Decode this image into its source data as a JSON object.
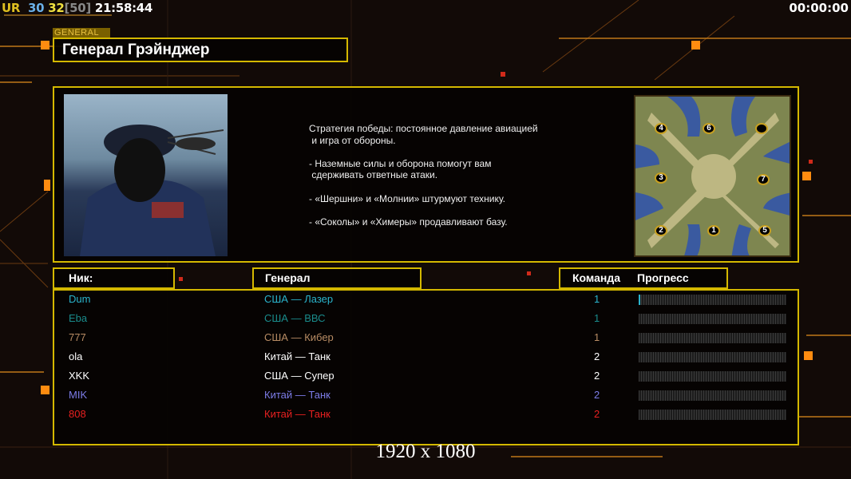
{
  "status": {
    "ur": "UR",
    "a": "30",
    "b": "32",
    "c": "[50]",
    "time": "21:58:44",
    "timer": "00:00:00"
  },
  "general": {
    "tag": "GENERAL",
    "name": "Генерал Грэйнджер",
    "briefing": "Стратегия победы: постоянное давление авиацией\n и игра от обороны.\n\n- Наземные силы и оборона помогут вам\n сдерживать ответные атаки.\n\n- «Шершни» и «Молнии» штурмуют технику.\n\n- «Соколы» и «Химеры» продавливают базу."
  },
  "map": {
    "start_positions": [
      "4",
      "6",
      "",
      "3",
      "7",
      "2",
      "1",
      "5"
    ]
  },
  "table": {
    "headers": {
      "nick": "Ник:",
      "general": "Генерал",
      "team": "Команда",
      "progress": "Прогресс"
    },
    "rows": [
      {
        "nick": "Dum",
        "general": "США — Лазер",
        "team": "1",
        "progress": 1,
        "color": "#2ab4cc"
      },
      {
        "nick": "Eba",
        "general": "США — ВВС",
        "team": "1",
        "progress": 0,
        "color": "#1a8c8c"
      },
      {
        "nick": "777",
        "general": "США — Кибер",
        "team": "1",
        "progress": 0,
        "color": "#b88c64"
      },
      {
        "nick": "ola",
        "general": "Китай — Танк",
        "team": "2",
        "progress": 0,
        "color": "#ffffff"
      },
      {
        "nick": "XKK",
        "general": "США — Супер",
        "team": "2",
        "progress": 0,
        "color": "#ffffff"
      },
      {
        "nick": "MIK",
        "general": "Китай — Танк",
        "team": "2",
        "progress": 0,
        "color": "#7c7ce8"
      },
      {
        "nick": "808",
        "general": "Китай — Танк",
        "team": "2",
        "progress": 0,
        "color": "#e82020"
      }
    ]
  },
  "resolution": "1920 x 1080",
  "colors": {
    "border": "#d4b800",
    "accent": "#ff7a10"
  }
}
